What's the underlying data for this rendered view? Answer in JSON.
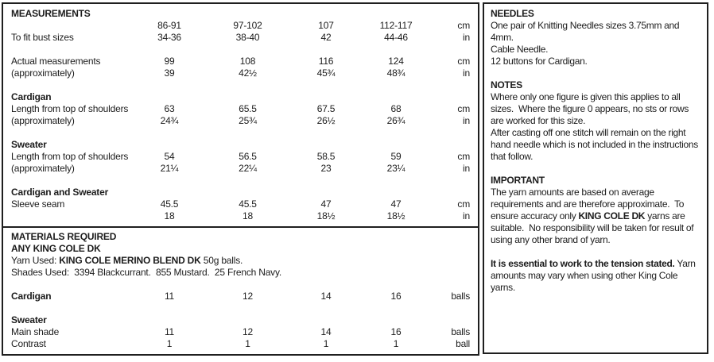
{
  "colors": {
    "background": "#ffffff",
    "text": "#1c1c1c",
    "border": "#1f1f1f"
  },
  "left": {
    "measurements": {
      "title": "MEASUREMENTS",
      "rows": [
        {
          "label": "",
          "values": [
            "86-91",
            "97-102",
            "107",
            "112-117"
          ],
          "unit": "cm"
        },
        {
          "label": "To fit bust sizes",
          "values": [
            "34-36",
            "38-40",
            "42",
            "44-46"
          ],
          "unit": "in"
        },
        {
          "type": "spacer"
        },
        {
          "label": "Actual measurements",
          "values": [
            "99",
            "108",
            "116",
            "124"
          ],
          "unit": "cm"
        },
        {
          "label": "(approximately)",
          "values": [
            "39",
            "42½",
            "45¾",
            "48¾"
          ],
          "unit": "in"
        },
        {
          "type": "spacer"
        },
        {
          "label": "Cardigan",
          "bold": true
        },
        {
          "label": "Length from top of shoulders",
          "values": [
            "63",
            "65.5",
            "67.5",
            "68"
          ],
          "unit": "cm"
        },
        {
          "label": "(approximately)",
          "values": [
            "24¾",
            "25¾",
            "26½",
            "26¾"
          ],
          "unit": "in"
        },
        {
          "type": "spacer"
        },
        {
          "label": "Sweater",
          "bold": true
        },
        {
          "label": "Length from top of shoulders",
          "values": [
            "54",
            "56.5",
            "58.5",
            "59"
          ],
          "unit": "cm"
        },
        {
          "label": "(approximately)",
          "values": [
            "21¼",
            "22¼",
            "23",
            "23¼"
          ],
          "unit": "in"
        },
        {
          "type": "spacer"
        },
        {
          "label": "Cardigan and Sweater",
          "bold": true
        },
        {
          "label": "Sleeve seam",
          "values": [
            "45.5",
            "45.5",
            "47",
            "47"
          ],
          "unit": "cm"
        },
        {
          "label": "",
          "values": [
            "18",
            "18",
            "18½",
            "18½"
          ],
          "unit": "in"
        }
      ]
    },
    "materials": {
      "title": "MATERIALS REQUIRED",
      "subtitle": "ANY KING COLE DK",
      "yarn_line": {
        "prefix": "Yarn Used: ",
        "bold": "KING COLE MERINO BLEND DK",
        "suffix": " 50g balls."
      },
      "shades_line": "Shades Used:  3394 Blackcurrant.  855 Mustard.  25 French Navy.",
      "rows": [
        {
          "type": "spacer"
        },
        {
          "label": "Cardigan",
          "bold": true,
          "values": [
            "11",
            "12",
            "14",
            "16"
          ],
          "unit": "balls"
        },
        {
          "type": "spacer"
        },
        {
          "label": "Sweater",
          "bold": true
        },
        {
          "label": "Main shade",
          "values": [
            "11",
            "12",
            "14",
            "16"
          ],
          "unit": "balls"
        },
        {
          "label": "Contrast",
          "values": [
            "1",
            "1",
            "1",
            "1"
          ],
          "unit": "ball"
        }
      ]
    }
  },
  "right": {
    "needles": {
      "title": "NEEDLES",
      "lines": [
        "One pair of Knitting Needles sizes 3.75mm and 4mm.",
        "Cable Needle.",
        "12 buttons for Cardigan."
      ]
    },
    "notes": {
      "title": "NOTES",
      "paragraphs": [
        "Where only one figure is given this applies to all sizes.  Where the figure 0 appears, no sts or rows are worked for this size.",
        "After casting off one stitch will remain on the right hand needle which is not included in the instructions that follow."
      ]
    },
    "important": {
      "title": "IMPORTANT",
      "para1_prefix": "The yarn amounts are based on average requirements and are therefore approximate.  To ensure accuracy only ",
      "para1_bold": "KING COLE DK",
      "para1_suffix": " yarns are suitable.  No responsibility will be taken for result of using any other brand of yarn.",
      "para2_bold": "It is essential to work to the tension stated.",
      "para2_rest": " Yarn amounts may vary when using other King Cole yarns."
    }
  }
}
